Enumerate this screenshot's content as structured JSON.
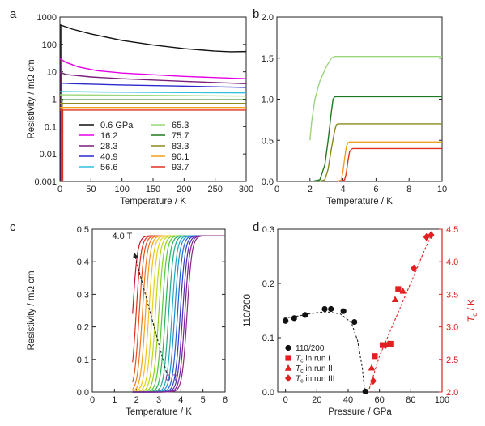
{
  "chart_data": [
    {
      "panel": "a",
      "type": "line",
      "xlabel": "Temperature / K",
      "ylabel": "Resistivity / mΩ cm",
      "xlim": [
        0,
        300
      ],
      "ylim": [
        0.001,
        1000
      ],
      "yscale": "log",
      "xticks": [
        "0",
        "50",
        "100",
        "150",
        "200",
        "250",
        "300"
      ],
      "yticks": [
        "0.001",
        "0.01",
        "0.1",
        "1",
        "10",
        "100",
        "1000"
      ],
      "legend_position": "bottom-left",
      "series": [
        {
          "name": "0.6 GPa",
          "color": "#111111",
          "x": [
            0,
            20,
            50,
            100,
            150,
            200,
            250,
            275,
            300
          ],
          "y": [
            520,
            360,
            240,
            140,
            95,
            70,
            57,
            54,
            55
          ]
        },
        {
          "name": "16.2",
          "color": "#e600e6",
          "x": [
            0,
            10,
            30,
            60,
            100,
            200,
            300
          ],
          "y": [
            30,
            22,
            15,
            11,
            9,
            6.8,
            5.6
          ]
        },
        {
          "name": "28.3",
          "color": "#7a1f7a",
          "x": [
            0,
            10,
            50,
            100,
            200,
            300
          ],
          "y": [
            9.5,
            8,
            6.5,
            5.6,
            4.5,
            3.7
          ]
        },
        {
          "name": "40.9",
          "color": "#2a2acf",
          "x": [
            0,
            20,
            100,
            200,
            300
          ],
          "y": [
            3.9,
            3.7,
            3.3,
            3.0,
            2.7
          ]
        },
        {
          "name": "56.6",
          "color": "#33bfe0",
          "x": [
            0,
            100,
            200,
            300
          ],
          "y": [
            1.9,
            1.8,
            1.75,
            1.7
          ]
        },
        {
          "name": "65.3",
          "color": "#9ad67a",
          "x": [
            0,
            100,
            200,
            300
          ],
          "y": [
            1.45,
            1.4,
            1.35,
            1.3
          ]
        },
        {
          "name": "75.7",
          "color": "#1f7a1f",
          "x": [
            0,
            100,
            200,
            300
          ],
          "y": [
            0.95,
            0.95,
            0.95,
            0.95
          ]
        },
        {
          "name": "83.3",
          "color": "#8a8a1f",
          "x": [
            0,
            100,
            200,
            300
          ],
          "y": [
            0.7,
            0.7,
            0.7,
            0.7
          ]
        },
        {
          "name": "90.1",
          "color": "#f0a020",
          "x": [
            0,
            100,
            200,
            300
          ],
          "y": [
            0.5,
            0.5,
            0.5,
            0.5
          ]
        },
        {
          "name": "93.7",
          "color": "#e03020",
          "x": [
            0,
            100,
            200,
            300
          ],
          "y": [
            0.4,
            0.4,
            0.4,
            0.4
          ]
        }
      ],
      "legend_columns": [
        [
          "0.6 GPa",
          "16.2",
          "28.3",
          "40.9",
          "56.6"
        ],
        [
          "65.3",
          "75.7",
          "83.3",
          "90.1",
          "93.7"
        ]
      ]
    },
    {
      "panel": "b",
      "type": "line",
      "xlabel": "Temperature / K",
      "ylabel": "",
      "xlim": [
        0,
        10
      ],
      "ylim": [
        0,
        2.0
      ],
      "xticks": [
        "0",
        "2",
        "4",
        "6",
        "8",
        "10"
      ],
      "yticks": [
        "0.0",
        "0.5",
        "1.0",
        "1.5",
        "2.0"
      ],
      "series": [
        {
          "color": "#9ad67a",
          "x": [
            2.0,
            2.1,
            2.3,
            2.6,
            3.0,
            3.3,
            3.5,
            4,
            10
          ],
          "y": [
            0.5,
            0.72,
            1.0,
            1.22,
            1.4,
            1.5,
            1.52,
            1.52,
            1.52
          ]
        },
        {
          "color": "#1f7a1f",
          "x": [
            2.1,
            2.6,
            2.9,
            3.1,
            3.3,
            3.4,
            3.5,
            4,
            10
          ],
          "y": [
            0,
            0.02,
            0.2,
            0.5,
            0.85,
            1.0,
            1.03,
            1.03,
            1.03
          ]
        },
        {
          "color": "#8a8a1f",
          "x": [
            2.6,
            2.9,
            3.1,
            3.3,
            3.5,
            3.6,
            3.7,
            4,
            10
          ],
          "y": [
            0,
            0.02,
            0.15,
            0.4,
            0.62,
            0.69,
            0.7,
            0.7,
            0.7
          ]
        },
        {
          "color": "#f0a020",
          "x": [
            3.7,
            3.9,
            4.0,
            4.1,
            4.2,
            4.3,
            4.4,
            5,
            10
          ],
          "y": [
            0,
            0.02,
            0.12,
            0.28,
            0.42,
            0.47,
            0.48,
            0.48,
            0.48
          ]
        },
        {
          "color": "#e03020",
          "x": [
            3.9,
            4.1,
            4.2,
            4.3,
            4.4,
            4.5,
            4.6,
            5,
            10
          ],
          "y": [
            0,
            0.02,
            0.1,
            0.25,
            0.36,
            0.39,
            0.4,
            0.4,
            0.4
          ]
        }
      ]
    },
    {
      "panel": "c",
      "type": "line",
      "xlabel": "Temperature / K",
      "ylabel": "Resistivity / mΩ cm",
      "xlim": [
        0,
        6
      ],
      "ylim": [
        0,
        0.5
      ],
      "xticks": [
        "0",
        "1",
        "2",
        "3",
        "4",
        "5",
        "6"
      ],
      "yticks": [
        "0.0",
        "0.1",
        "0.2",
        "0.3",
        "0.4",
        "0.5"
      ],
      "field_start": "4.0 T",
      "field_end": "0 T",
      "curves": {
        "count": 19,
        "transition_midpoints_K": [
          1.82,
          1.98,
          2.12,
          2.26,
          2.4,
          2.55,
          2.7,
          2.85,
          3.0,
          3.15,
          3.3,
          3.45,
          3.6,
          3.72,
          3.85,
          3.97,
          4.08,
          4.18,
          4.28
        ],
        "normal_state_value": 0.48,
        "x_start_K": 1.82,
        "x_end_K": 6.0,
        "colors": [
          "#d2142d",
          "#dc2e1e",
          "#e6501e",
          "#ee7a1e",
          "#f2a01e",
          "#f5c21e",
          "#e6d21e",
          "#bcd81e",
          "#8cd21e",
          "#55c83c",
          "#28b45a",
          "#1eaa8c",
          "#1eaac3",
          "#1e8cd2",
          "#1e64d2",
          "#323cc8",
          "#5a28b4",
          "#7d1e9b",
          "#8c2882"
        ]
      }
    },
    {
      "panel": "d",
      "type": "scatter",
      "xlabel": "Pressure / GPa",
      "ylabel_left": "110/200",
      "ylabel_right": "Tc / K",
      "xlim": [
        -5,
        100
      ],
      "ylim_left": [
        0,
        0.3
      ],
      "ylim_right": [
        2.0,
        4.5
      ],
      "xticks": [
        "0",
        "20",
        "40",
        "60",
        "80",
        "100"
      ],
      "yticks_left": [
        "0.0",
        "0.1",
        "0.2",
        "0.3"
      ],
      "yticks_right": [
        "2.0",
        "2.5",
        "3.0",
        "3.5",
        "4.0",
        "4.5"
      ],
      "right_axis_color": "#e02020",
      "series": [
        {
          "name": "110/200",
          "marker": "circle",
          "color": "#111111",
          "axis": "left",
          "x": [
            0,
            5.5,
            12.5,
            25,
            29,
            37,
            44,
            51
          ],
          "y": [
            0.131,
            0.136,
            0.142,
            0.153,
            0.153,
            0.149,
            0.129,
            0.001
          ]
        },
        {
          "name": "Tc in run I",
          "marker": "square",
          "color": "#e02020",
          "axis": "right",
          "x": [
            57,
            62,
            67,
            72
          ],
          "y": [
            2.55,
            2.72,
            2.74,
            3.58
          ]
        },
        {
          "name": "Tc in run II",
          "marker": "triangle",
          "color": "#e02020",
          "axis": "right",
          "x": [
            55,
            70,
            75
          ],
          "y": [
            2.37,
            3.42,
            3.55
          ]
        },
        {
          "name": "Tc in run III",
          "marker": "diamond",
          "color": "#e02020",
          "axis": "right",
          "x": [
            56,
            64,
            66,
            82,
            90,
            93
          ],
          "y": [
            2.17,
            2.72,
            2.74,
            3.9,
            4.38,
            4.41
          ]
        }
      ]
    }
  ]
}
